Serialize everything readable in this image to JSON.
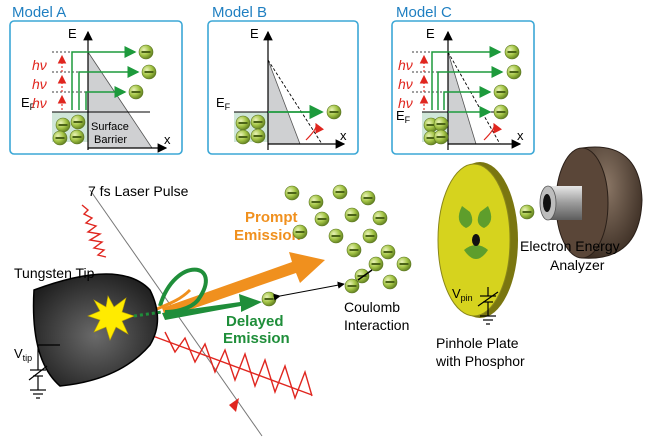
{
  "panels": [
    {
      "title": "Model A",
      "e_axis": "E",
      "x_axis": "x",
      "fermi": "EF",
      "photon_labels": [
        "hν",
        "hν",
        "hν"
      ],
      "barrier_label_1": "Surface",
      "barrier_label_2": "Barrier"
    },
    {
      "title": "Model B",
      "e_axis": "E",
      "x_axis": "x",
      "fermi": "EF"
    },
    {
      "title": "Model C",
      "e_axis": "E",
      "x_axis": "x",
      "fermi": "EF",
      "photon_labels": [
        "hν",
        "hν",
        "hν"
      ]
    }
  ],
  "labels": {
    "laser_pulse": "7 fs Laser Pulse",
    "tungsten_tip": "Tungsten Tip",
    "v_tip": "Vtip",
    "prompt_1": "Prompt",
    "prompt_2": "Emission",
    "delayed_1": "Delayed",
    "delayed_2": "Emission",
    "coulomb_1": "Coulomb",
    "coulomb_2": "Interaction",
    "v_pin": "Vpin",
    "pinhole_1": "Pinhole Plate",
    "pinhole_2": "with Phosphor",
    "analyzer_1": "Electron Energy",
    "analyzer_2": "Analyzer"
  },
  "colors": {
    "panel_border": "#3ba7d6",
    "title": "#1f7fc1",
    "photon": "#e0261f",
    "arrow_green": "#1d9a3c",
    "prompt": "#f0901e",
    "delayed": "#1f8e3a",
    "barrier": "#cfd0d2",
    "electron": "#9bbf3c",
    "laser": "#e0261f"
  }
}
